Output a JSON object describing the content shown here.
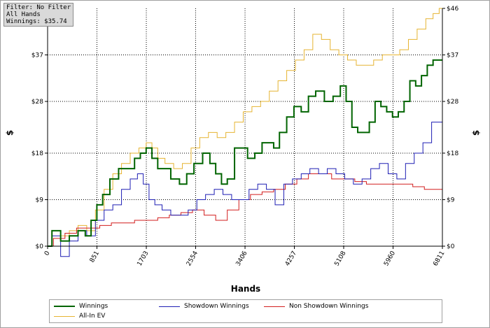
{
  "filter_box": {
    "line1": "Filter: No Filter",
    "line2": "All Hands",
    "line3": "Winnings: $35.74"
  },
  "chart_data": {
    "type": "line",
    "xlabel": "Hands",
    "ylabel": "$",
    "xlim": [
      0,
      6811
    ],
    "ylim": [
      0,
      46
    ],
    "x_ticks": [
      0,
      851,
      1703,
      2554,
      3406,
      4257,
      5108,
      5960,
      6811
    ],
    "y_ticks": [
      {
        "value": 0,
        "label": "$0"
      },
      {
        "value": 9,
        "label": "$9"
      },
      {
        "value": 18,
        "label": "$18"
      },
      {
        "value": 28,
        "label": "$28"
      },
      {
        "value": 37,
        "label": "$37"
      },
      {
        "value": 46,
        "label": "$46"
      }
    ],
    "grid": true,
    "legend_position": "bottom",
    "series": [
      {
        "name": "Winnings",
        "color": "#006400",
        "width": 2,
        "x": [
          0,
          150,
          300,
          450,
          600,
          700,
          800,
          900,
          1000,
          1150,
          1300,
          1450,
          1550,
          1650,
          1750,
          1850,
          1950,
          2050,
          2200,
          2350,
          2450,
          2600,
          2750,
          2850,
          2950,
          3050,
          3150,
          3300,
          3400,
          3500,
          3650,
          3750,
          3850,
          3950,
          4050,
          4200,
          4300,
          4450,
          4550,
          4700,
          4850,
          5000,
          5100,
          5200,
          5300,
          5400,
          5500,
          5600,
          5700,
          5800,
          5900,
          6000,
          6100,
          6200,
          6300,
          6400,
          6500,
          6600,
          6700,
          6811
        ],
        "y": [
          0,
          3,
          1,
          2,
          3,
          2,
          5,
          8,
          10,
          13,
          15,
          15,
          17,
          18,
          19,
          17,
          15,
          15,
          13,
          12,
          14,
          16,
          18,
          16,
          14,
          12,
          13,
          19,
          19,
          17,
          18,
          20,
          20,
          19,
          22,
          25,
          27,
          26,
          29,
          30,
          28,
          29,
          31,
          28,
          23,
          22,
          22,
          24,
          28,
          27,
          26,
          25,
          26,
          28,
          32,
          31,
          33,
          35,
          36,
          36
        ]
      },
      {
        "name": "Showdown Winnings",
        "color": "#1e1eb4",
        "width": 1,
        "x": [
          0,
          150,
          300,
          450,
          600,
          750,
          900,
          1050,
          1200,
          1350,
          1500,
          1600,
          1700,
          1800,
          1900,
          2050,
          2200,
          2350,
          2500,
          2650,
          2800,
          2950,
          3100,
          3250,
          3400,
          3550,
          3700,
          3850,
          4000,
          4150,
          4300,
          4450,
          4600,
          4750,
          4900,
          5050,
          5200,
          5350,
          5500,
          5650,
          5800,
          5950,
          6100,
          6250,
          6400,
          6550,
          6700,
          6811
        ],
        "y": [
          0,
          2,
          -2,
          1,
          3,
          2,
          5,
          7,
          8,
          11,
          13,
          14,
          12,
          9,
          8,
          7,
          6,
          6,
          7,
          9,
          10,
          11,
          10,
          9,
          9,
          11,
          12,
          11,
          8,
          12,
          13,
          14,
          15,
          14,
          15,
          14,
          13,
          12,
          13,
          15,
          16,
          14,
          13,
          16,
          18,
          20,
          24,
          24
        ]
      },
      {
        "name": "Non Showdown Winnings",
        "color": "#d21e1e",
        "width": 1,
        "x": [
          0,
          200,
          400,
          600,
          800,
          1000,
          1200,
          1400,
          1600,
          1800,
          2000,
          2200,
          2400,
          2600,
          2800,
          3000,
          3200,
          3400,
          3600,
          3800,
          4000,
          4200,
          4400,
          4600,
          4800,
          5000,
          5200,
          5400,
          5600,
          5800,
          6000,
          6200,
          6400,
          6600,
          6811
        ],
        "y": [
          0,
          1.5,
          2.5,
          3.5,
          3.5,
          4,
          4.5,
          4.5,
          5,
          5,
          5.5,
          6,
          6.5,
          7,
          6,
          5,
          7,
          9,
          10,
          10.5,
          11,
          12,
          13,
          14,
          14,
          13,
          13,
          12.5,
          12,
          12,
          12,
          12,
          11.5,
          11,
          11
        ]
      },
      {
        "name": "All-In EV",
        "color": "#e6b432",
        "width": 1,
        "x": [
          0,
          150,
          300,
          450,
          600,
          750,
          900,
          1050,
          1200,
          1350,
          1500,
          1650,
          1750,
          1850,
          1950,
          2100,
          2250,
          2400,
          2550,
          2700,
          2850,
          3000,
          3150,
          3300,
          3450,
          3600,
          3750,
          3900,
          4050,
          4200,
          4350,
          4500,
          4650,
          4800,
          4950,
          5100,
          5250,
          5400,
          5550,
          5700,
          5850,
          6000,
          6150,
          6300,
          6450,
          6600,
          6700,
          6811
        ],
        "y": [
          0,
          3,
          2,
          3,
          4,
          3,
          7,
          11,
          14,
          16,
          18,
          19,
          20,
          19,
          17,
          16,
          15,
          16,
          19,
          21,
          22,
          21,
          22,
          24,
          26,
          27,
          28,
          30,
          32,
          34,
          36,
          38,
          41,
          40,
          38,
          37,
          36,
          35,
          35,
          36,
          37,
          37,
          38,
          40,
          42,
          44,
          45,
          46
        ]
      }
    ]
  }
}
